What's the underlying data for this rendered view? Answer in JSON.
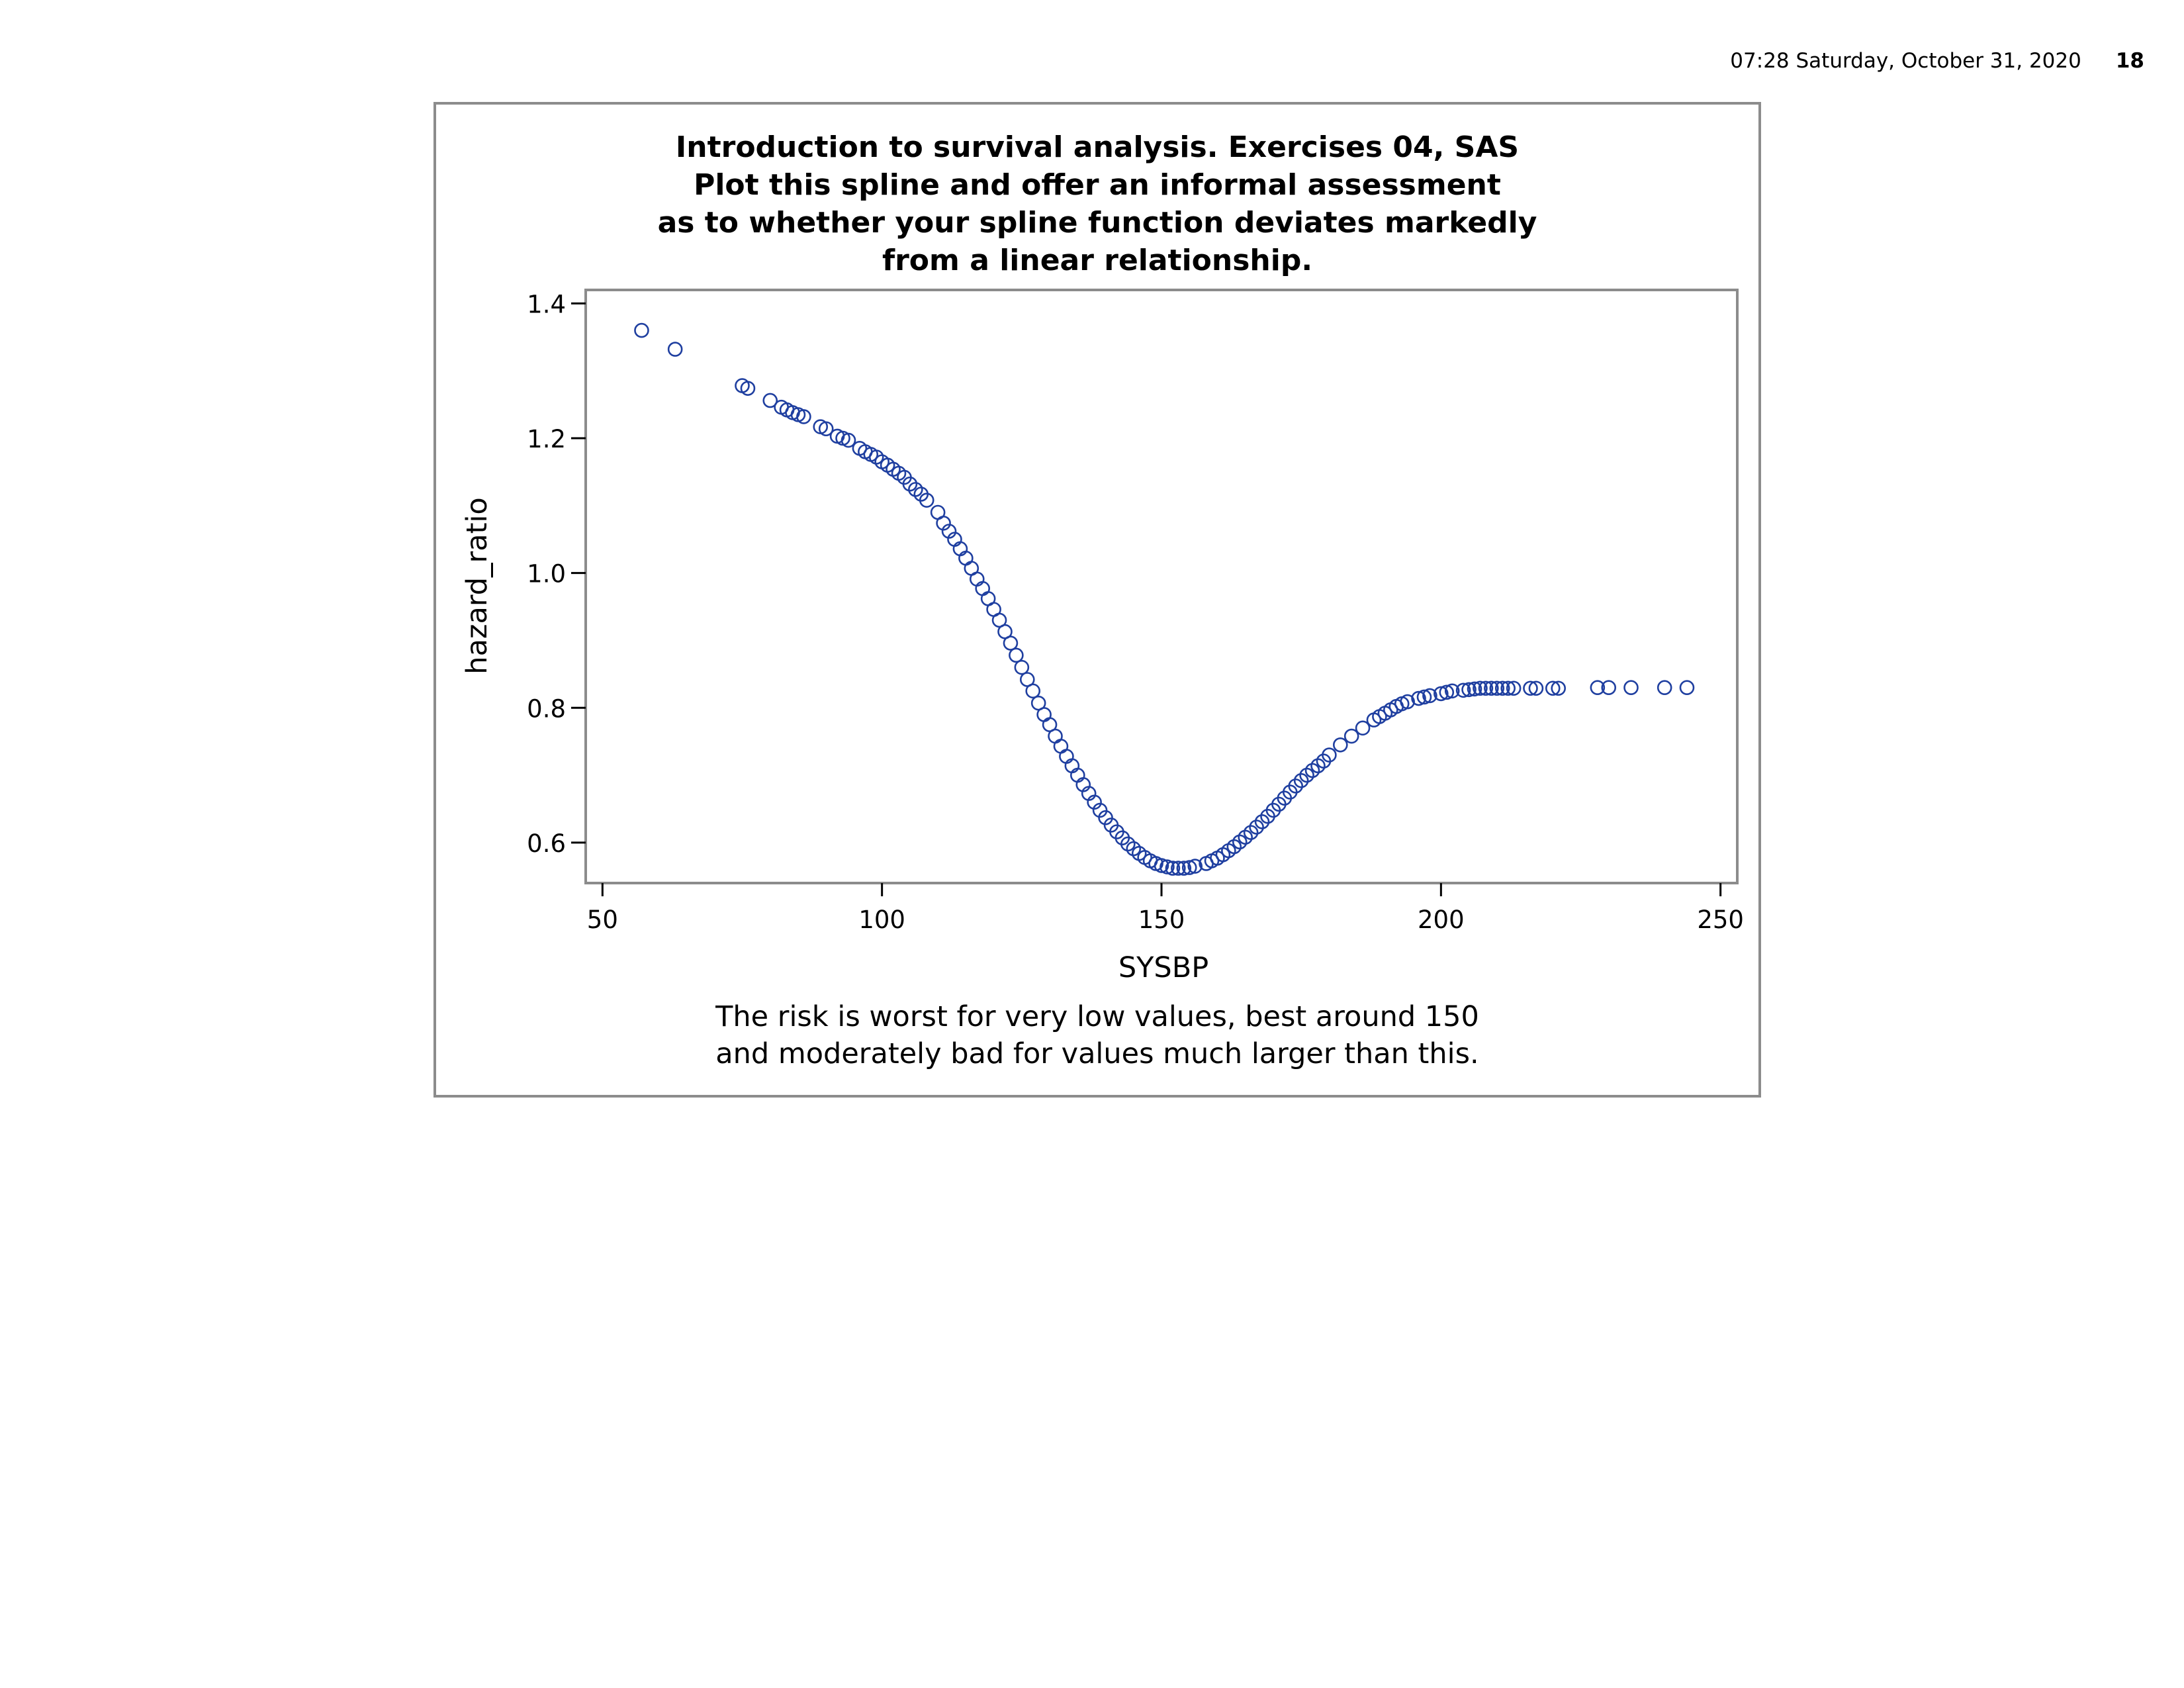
{
  "header": {
    "timestamp": "07:28 Saturday, October 31, 2020",
    "page_number": "18"
  },
  "chart_data": {
    "type": "scatter",
    "title_lines": [
      "Introduction to survival analysis. Exercises 04, SAS",
      "Plot this spline and offer an informal assessment",
      "as to whether your spline function deviates markedly",
      "from a linear relationship."
    ],
    "xlabel": "SYSBP",
    "ylabel": "hazard_ratio",
    "xlim": [
      47,
      253
    ],
    "ylim": [
      0.54,
      1.42
    ],
    "xticks": [
      50,
      100,
      150,
      200,
      250
    ],
    "yticks": [
      0.6,
      0.8,
      1.0,
      1.2,
      1.4
    ],
    "ytick_labels": [
      "0.6",
      "0.8",
      "1.0",
      "1.2",
      "1.4"
    ],
    "grid": false,
    "legend": false,
    "marker_color": "#1f3fa0",
    "footnote_lines": [
      "The risk is worst for very low values, best around 150",
      "and moderately bad for values much larger than this."
    ],
    "series": [
      {
        "x": [
          57,
          63,
          75,
          76,
          80,
          82,
          83,
          84,
          85,
          86,
          89,
          90,
          92,
          93,
          94,
          96,
          97,
          98,
          99,
          100,
          101,
          102,
          103,
          104,
          105,
          106,
          107,
          108,
          110,
          111,
          112,
          113,
          114,
          115,
          116,
          117,
          118,
          119,
          120,
          121,
          122,
          123,
          124,
          125,
          126,
          127,
          128,
          129,
          130,
          131,
          132,
          133,
          134,
          135,
          136,
          137,
          138,
          139,
          140,
          141,
          142,
          143,
          144,
          145,
          146,
          147,
          148,
          149,
          150,
          151,
          152,
          153,
          154,
          155,
          156,
          158,
          159,
          160,
          161,
          162,
          163,
          164,
          165,
          166,
          167,
          168,
          169,
          170,
          171,
          172,
          173,
          174,
          175,
          176,
          177,
          178,
          179,
          180,
          182,
          184,
          186,
          188,
          189,
          190,
          191,
          192,
          193,
          194,
          196,
          197,
          198,
          200,
          201,
          202,
          204,
          205,
          206,
          207,
          208,
          209,
          210,
          211,
          212,
          213,
          216,
          217,
          220,
          221,
          228,
          230,
          234,
          240,
          244
        ],
        "y": [
          1.36,
          1.332,
          1.278,
          1.274,
          1.256,
          1.246,
          1.242,
          1.238,
          1.235,
          1.232,
          1.217,
          1.214,
          1.203,
          1.2,
          1.197,
          1.185,
          1.18,
          1.176,
          1.172,
          1.165,
          1.16,
          1.154,
          1.148,
          1.142,
          1.132,
          1.124,
          1.117,
          1.108,
          1.09,
          1.074,
          1.062,
          1.05,
          1.036,
          1.022,
          1.007,
          0.991,
          0.977,
          0.962,
          0.946,
          0.93,
          0.913,
          0.896,
          0.878,
          0.86,
          0.842,
          0.825,
          0.807,
          0.79,
          0.775,
          0.758,
          0.743,
          0.728,
          0.714,
          0.7,
          0.686,
          0.673,
          0.66,
          0.648,
          0.637,
          0.626,
          0.616,
          0.607,
          0.598,
          0.591,
          0.584,
          0.578,
          0.573,
          0.569,
          0.566,
          0.564,
          0.562,
          0.562,
          0.562,
          0.563,
          0.565,
          0.569,
          0.573,
          0.577,
          0.582,
          0.588,
          0.594,
          0.601,
          0.608,
          0.615,
          0.623,
          0.631,
          0.639,
          0.648,
          0.657,
          0.666,
          0.675,
          0.684,
          0.692,
          0.7,
          0.707,
          0.714,
          0.721,
          0.73,
          0.745,
          0.758,
          0.77,
          0.782,
          0.787,
          0.792,
          0.797,
          0.802,
          0.806,
          0.809,
          0.814,
          0.816,
          0.818,
          0.821,
          0.823,
          0.825,
          0.826,
          0.827,
          0.828,
          0.829,
          0.829,
          0.829,
          0.829,
          0.829,
          0.829,
          0.829,
          0.829,
          0.829,
          0.829,
          0.829,
          0.83,
          0.83,
          0.83,
          0.83,
          0.83
        ]
      }
    ]
  }
}
